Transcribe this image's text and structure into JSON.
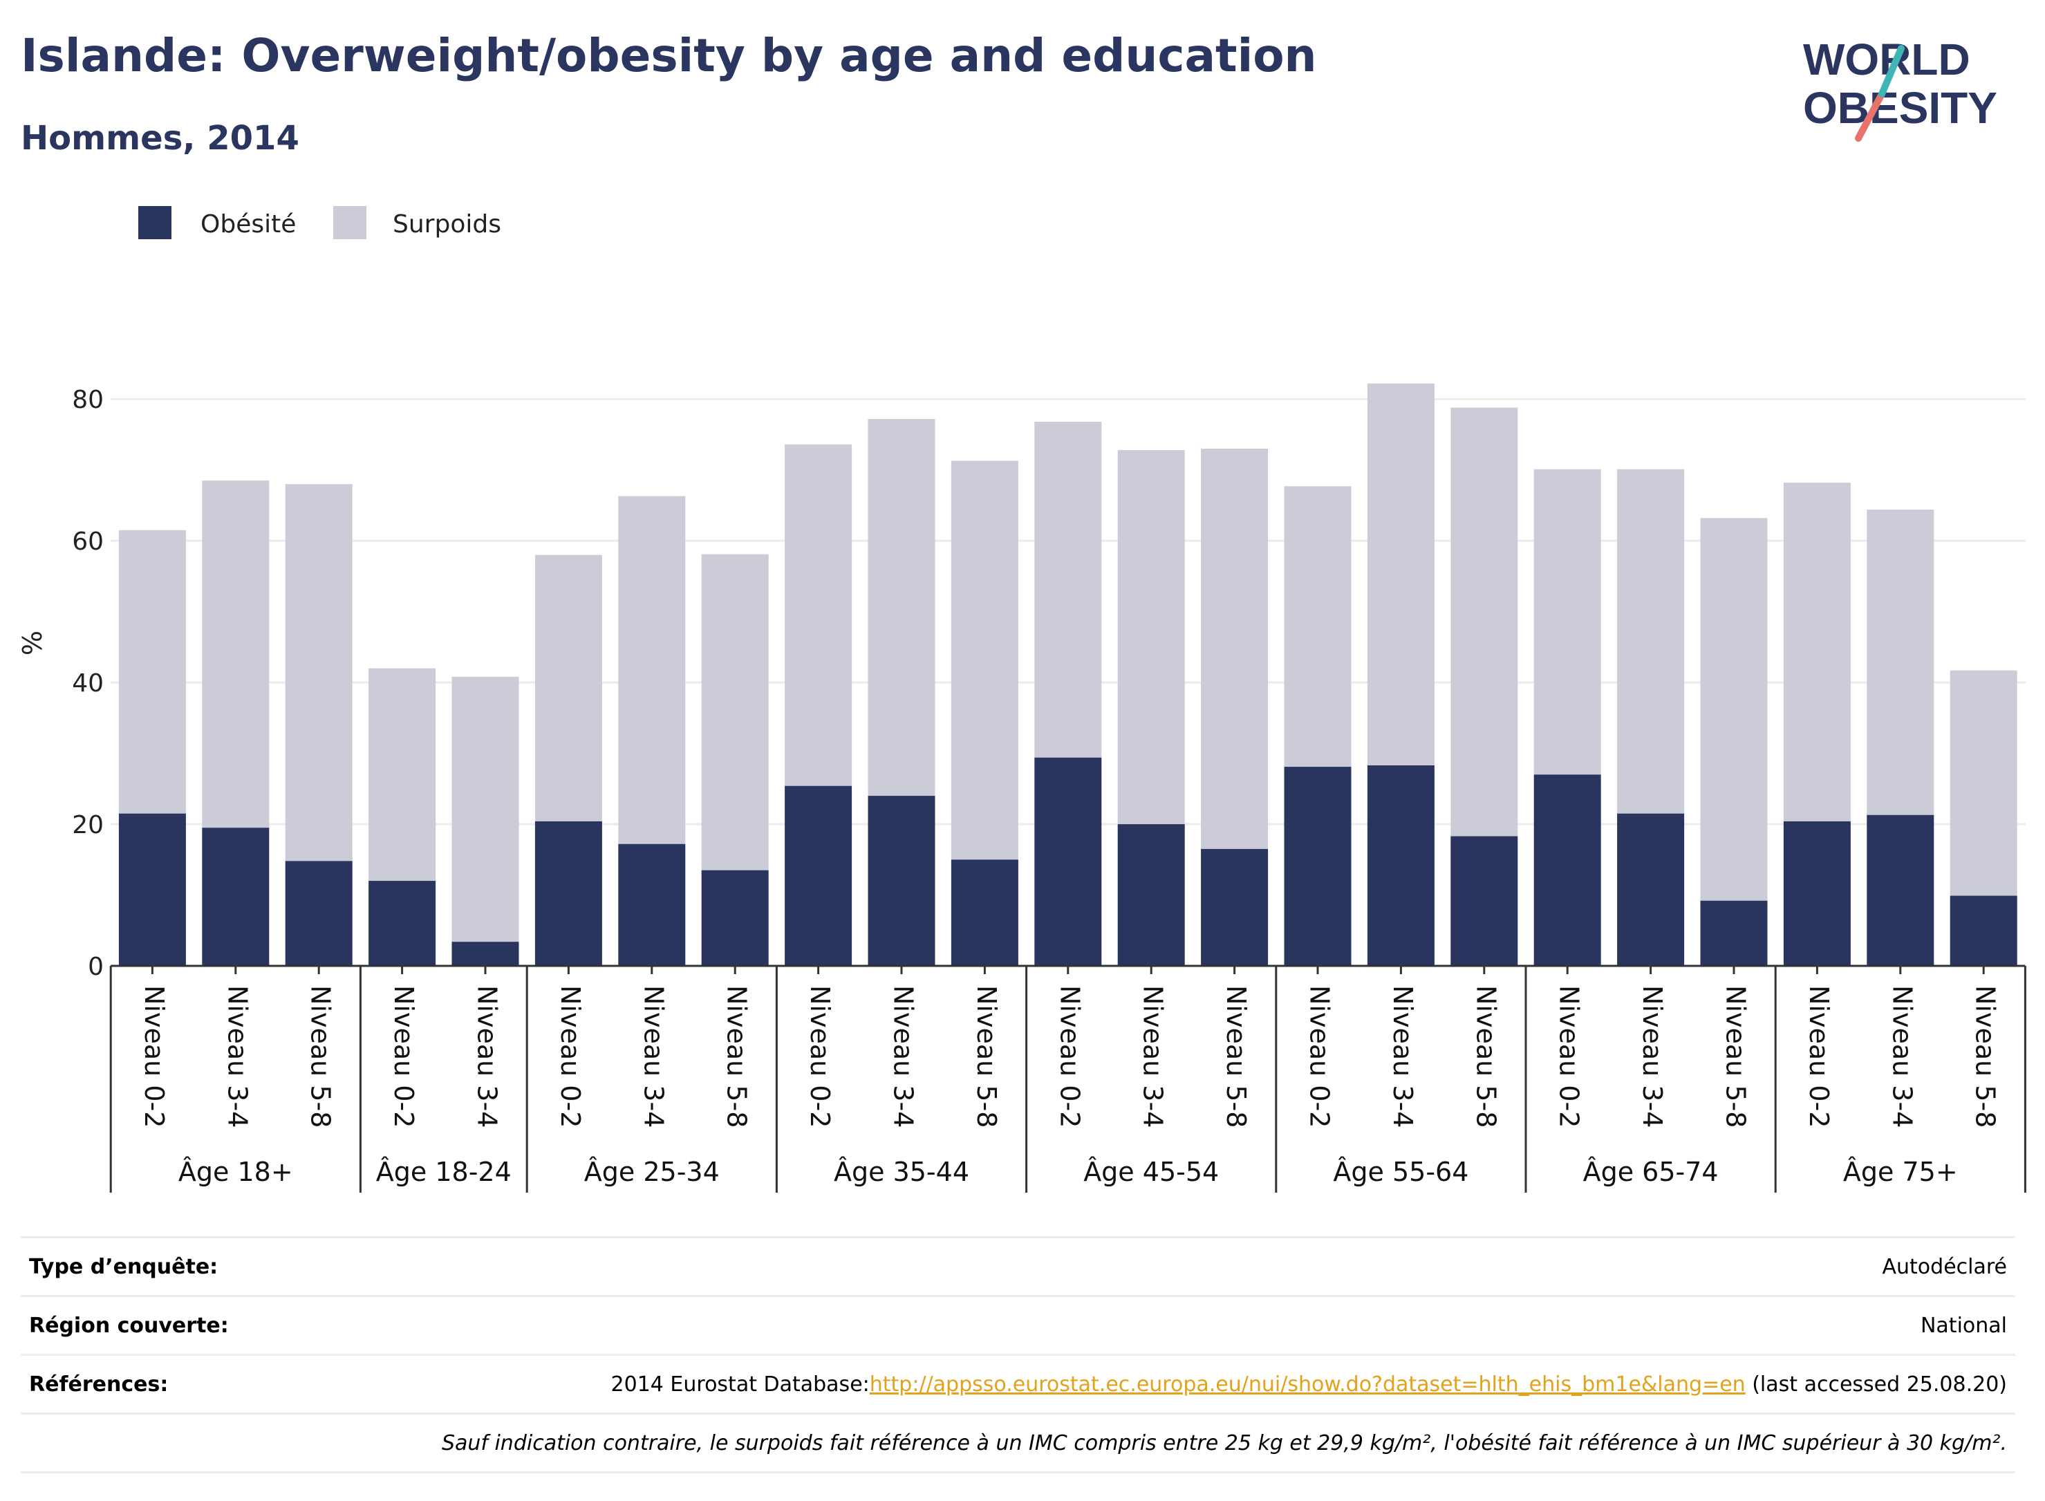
{
  "header": {
    "title": "Islande: Overweight/obesity by age and education",
    "subtitle": "Hommes, 2014"
  },
  "logo": {
    "line1": "WORLD",
    "line2": "OBESITY"
  },
  "colors": {
    "obesity": "#29355f",
    "overweight": "#cbccd8",
    "title": "#2a3560",
    "link": "#e3a21a",
    "logo_teal": "#3fb5b8",
    "logo_coral": "#e8736a"
  },
  "chart_data": {
    "type": "bar",
    "stacked": true,
    "title": "Islande: Overweight/obesity by age and education",
    "subtitle": "Hommes, 2014",
    "ylabel": "%",
    "ylim": [
      0,
      85
    ],
    "yticks": [
      0,
      20,
      40,
      60,
      80
    ],
    "grid": true,
    "legend_position": "top-left",
    "groups": [
      {
        "label": "Âge 18+",
        "categories": [
          "Niveau 0-2",
          "Niveau 3-4",
          "Niveau 5-8"
        ],
        "obesity": [
          21.5,
          19.5,
          14.8
        ],
        "total": [
          61.5,
          68.5,
          68.0
        ]
      },
      {
        "label": "Âge 18-24",
        "categories": [
          "Niveau 0-2",
          "Niveau 3-4"
        ],
        "obesity": [
          12.0,
          3.4
        ],
        "total": [
          42.0,
          40.8
        ]
      },
      {
        "label": "Âge 25-34",
        "categories": [
          "Niveau 0-2",
          "Niveau 3-4",
          "Niveau 5-8"
        ],
        "obesity": [
          20.4,
          17.2,
          13.5
        ],
        "total": [
          58.0,
          66.3,
          58.1
        ]
      },
      {
        "label": "Âge 35-44",
        "categories": [
          "Niveau 0-2",
          "Niveau 3-4",
          "Niveau 5-8"
        ],
        "obesity": [
          25.4,
          24.0,
          15.0
        ],
        "total": [
          73.6,
          77.2,
          71.3
        ]
      },
      {
        "label": "Âge 45-54",
        "categories": [
          "Niveau 0-2",
          "Niveau 3-4",
          "Niveau 5-8"
        ],
        "obesity": [
          29.4,
          20.0,
          16.5
        ],
        "total": [
          76.8,
          72.8,
          73.0
        ]
      },
      {
        "label": "Âge 55-64",
        "categories": [
          "Niveau 0-2",
          "Niveau 3-4",
          "Niveau 5-8"
        ],
        "obesity": [
          28.1,
          28.3,
          18.3
        ],
        "total": [
          67.7,
          82.2,
          78.8
        ]
      },
      {
        "label": "Âge 65-74",
        "categories": [
          "Niveau 0-2",
          "Niveau 3-4",
          "Niveau 5-8"
        ],
        "obesity": [
          27.0,
          21.5,
          9.2
        ],
        "total": [
          70.1,
          70.1,
          63.2
        ]
      },
      {
        "label": "Âge 75+",
        "categories": [
          "Niveau 0-2",
          "Niveau 3-4",
          "Niveau 5-8"
        ],
        "obesity": [
          20.4,
          21.3,
          9.9
        ],
        "total": [
          68.2,
          64.4,
          41.7
        ]
      }
    ],
    "series": [
      {
        "name": "Obésité",
        "color": "#29355f"
      },
      {
        "name": "Surpoids",
        "color": "#cbccd8"
      }
    ]
  },
  "info": {
    "survey_label": "Type d’enquête:",
    "survey_value": "Autodéclaré",
    "region_label": "Région couverte:",
    "region_value": "National",
    "refs_label": "Références:",
    "refs_prefix": "2014 Eurostat Database:",
    "refs_link": "http://appsso.eurostat.ec.europa.eu/nui/show.do?dataset=hlth_ehis_bm1e&lang=en",
    "refs_suffix": " (last accessed 25.08.20)",
    "note": "Sauf indication contraire, le surpoids fait référence à un IMC compris entre 25 kg et 29,9 kg/m², l'obésité fait référence à un IMC supérieur à 30 kg/m²."
  }
}
